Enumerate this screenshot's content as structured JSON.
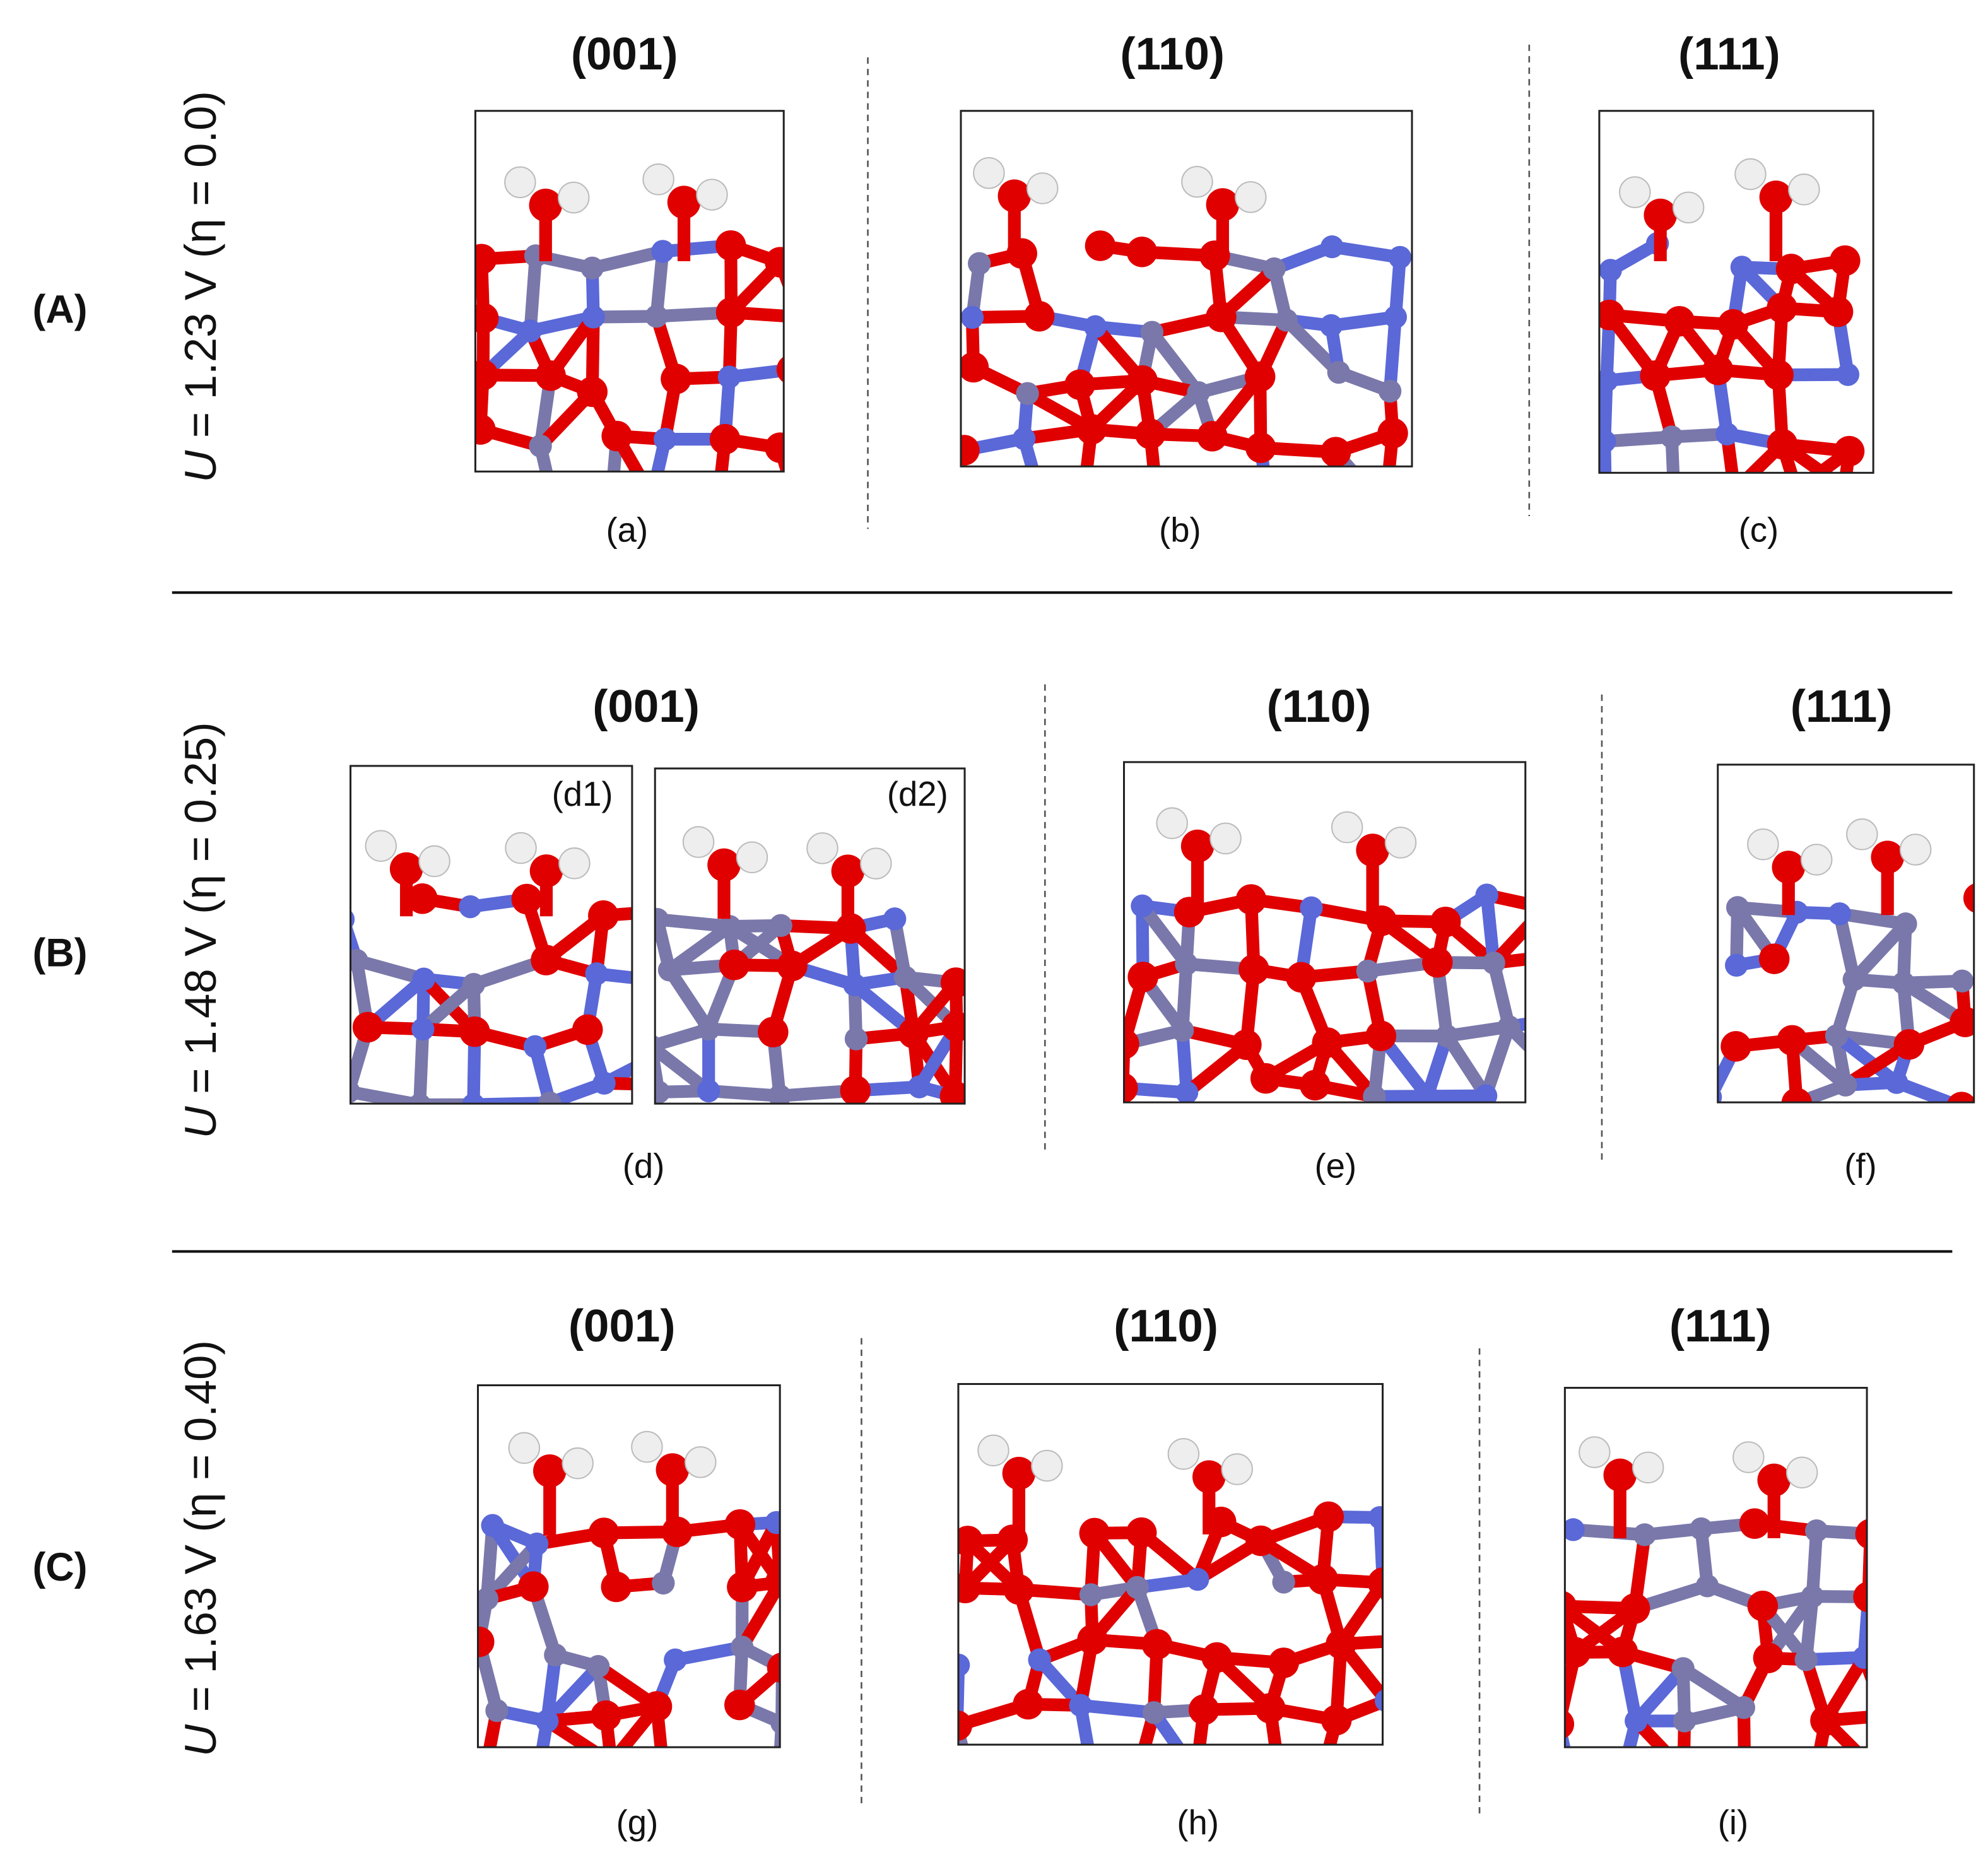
{
  "rows": [
    {
      "label": "(A)",
      "potential_symbol": "U",
      "potential": " = 1.23 V (η = 0.0)",
      "panels": [
        {
          "title": "(001)",
          "caption": "(a)"
        },
        {
          "title": "(110)",
          "caption": "(b)"
        },
        {
          "title": "(111)",
          "caption": "(c)"
        }
      ]
    },
    {
      "label": "(B)",
      "potential_symbol": "U",
      "potential": " = 1.48 V (η = 0.25)",
      "panels": [
        {
          "title": "(001)",
          "caption": "(d)",
          "insets": [
            "(d1)",
            "(d2)"
          ]
        },
        {
          "title": "(110)",
          "caption": "(e)"
        },
        {
          "title": "(111)",
          "caption": "(f)"
        }
      ]
    },
    {
      "label": "(C)",
      "potential_symbol": "U",
      "potential": " = 1.63 V (η = 0.40)",
      "panels": [
        {
          "title": "(001)",
          "caption": "(g)"
        },
        {
          "title": "(110)",
          "caption": "(h)"
        },
        {
          "title": "(111)",
          "caption": "(i)"
        }
      ]
    }
  ]
}
